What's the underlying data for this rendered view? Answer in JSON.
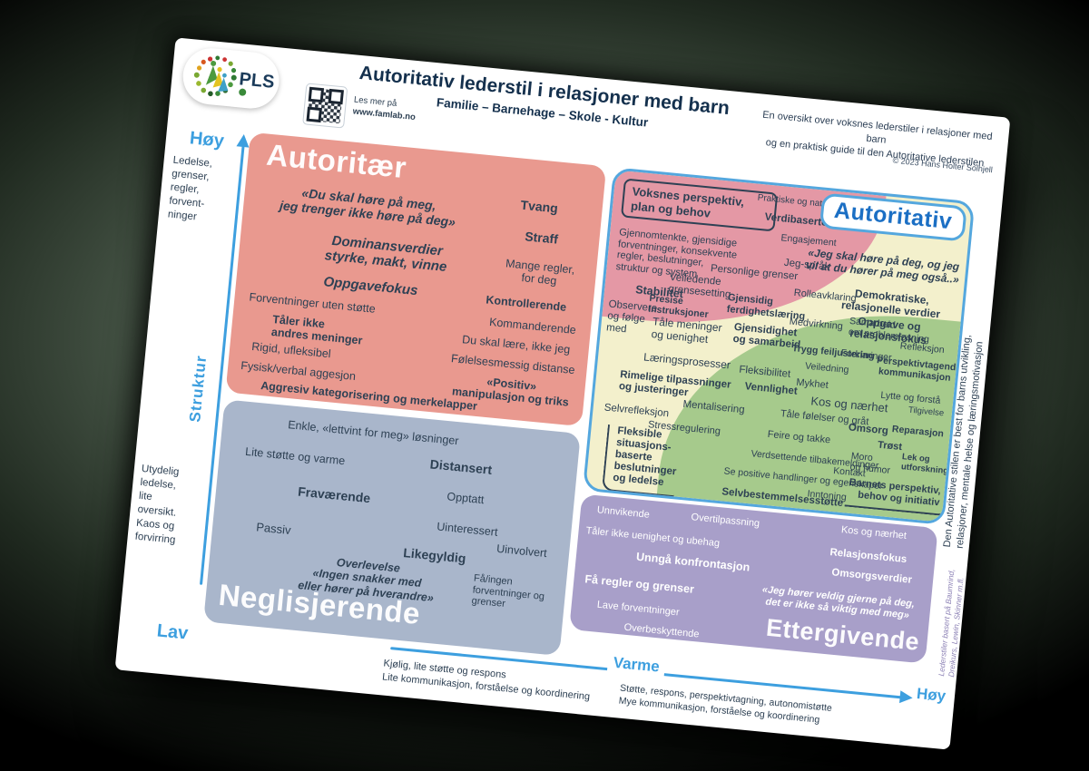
{
  "header": {
    "logo": "PLS",
    "title": "Autoritativ lederstil i relasjoner med barn",
    "subtitle": "Familie – Barnehage – Skole - Kultur",
    "read_more": "Les mer på",
    "url": "www.famlab.no",
    "intro": "En oversikt over voksnes lederstiler i relasjoner med barn\nog en praktisk guide til den Autoritative lederstilen",
    "copyright": "© 2023 Hans Holter Solhjell"
  },
  "axes": {
    "struktur": {
      "name": "Struktur",
      "high": "Høy",
      "high_desc": "Ledelse,\ngrenser,\nregler,\nforvent-\nninger",
      "low": "Lav",
      "low_desc": "Utydelig\nledelse,\nlite\noversikt.\nKaos og\nforvirring"
    },
    "varme": {
      "name": "Varme",
      "high": "Høy",
      "high_desc": "Støtte, respons, perspektivtagning, autonomistøtte\nMye kommunikasjon, forståelse og koordinering",
      "low_desc": "Kjølig, lite støtte og respons\nLite kommunikasjon, forståelse og koordinering"
    }
  },
  "autoritaer": {
    "title": "Autoritær",
    "items": [
      {
        "t": "«Du skal høre på meg,\njeg trenger ikke høre på deg»",
        "s": "bi"
      },
      {
        "t": "Tvang",
        "s": "b"
      },
      {
        "t": "Straff",
        "s": "b"
      },
      {
        "t": "Dominansverdier\nstyrke, makt, vinne",
        "s": "bi"
      },
      {
        "t": "Mange regler,\nfor deg",
        "s": ""
      },
      {
        "t": "Oppgavefokus",
        "s": "bi"
      },
      {
        "t": "Kontrollerende",
        "s": "b"
      },
      {
        "t": "Forventninger uten støtte",
        "s": ""
      },
      {
        "t": "Kommanderende",
        "s": ""
      },
      {
        "t": "Tåler ikke\nandres meninger",
        "s": "b"
      },
      {
        "t": "Du skal lære, ikke jeg",
        "s": ""
      },
      {
        "t": "Rigid, ufleksibel",
        "s": ""
      },
      {
        "t": "Følelsesmessig distanse",
        "s": ""
      },
      {
        "t": "Fysisk/verbal aggesjon",
        "s": ""
      },
      {
        "t": "«Positiv»\nmanipulasjon og triks",
        "s": "b"
      },
      {
        "t": "Aggresiv kategorisering og merkelapper",
        "s": "b"
      }
    ]
  },
  "autoritativ": {
    "title": "Autoritativ",
    "voksnes_box": "Voksnes perspektiv,\nplan og behov",
    "fleksible_box": "Fleksible\nsituasjons-\nbaserte\nbeslutninger\nog ledelse",
    "barnets_box": "Barnets perspektiv,\nbehov og initiativ",
    "pink_items": [
      {
        "t": "Gjennomtenkte, gjensidige\nforventninger, konsekvente\nregler, beslutninger,\nstruktur og system",
        "s": ""
      },
      {
        "t": "Stabilitet",
        "s": "b"
      },
      {
        "t": "Observere\nog følge\nmed",
        "s": ""
      },
      {
        "t": "Praktiske og naturlige konsekvenser",
        "s": ""
      },
      {
        "t": "Verdibaserte vurderinger",
        "s": "b"
      },
      {
        "t": "Engasjement",
        "s": ""
      }
    ],
    "yellow_items": [
      {
        "t": "«Jeg skal høre på deg, og jeg\nvil at du hører på meg også..»",
        "s": "bi"
      },
      {
        "t": "Demokratiske,\nrelasjonelle verdier",
        "s": "b"
      },
      {
        "t": "Oppgave og\nrelasjonsfokus",
        "s": "b"
      },
      {
        "t": "Jeg-språk",
        "s": ""
      },
      {
        "t": "Personlige grenser",
        "s": ""
      },
      {
        "t": "Veiledende\ngrensesetting",
        "s": ""
      },
      {
        "t": "Rolleavklaring",
        "s": ""
      },
      {
        "t": "Gjensidig\nferdighetslæring",
        "s": "b"
      },
      {
        "t": "Presise\nInstruksjoner",
        "s": "b"
      },
      {
        "t": "Medvirkning",
        "s": ""
      },
      {
        "t": "Samarbeid\nom problemløsning",
        "s": ""
      },
      {
        "t": "Tåle meninger\nog uenighet",
        "s": ""
      },
      {
        "t": "Gjensidighet\nog samarbeid",
        "s": "b"
      },
      {
        "t": "Trygg feiljustering",
        "s": "b"
      },
      {
        "t": "Læringsprosesser",
        "s": ""
      },
      {
        "t": "Fleksibilitet",
        "s": ""
      },
      {
        "t": "Rimelige tilpassninger\nog justeringer",
        "s": "b"
      },
      {
        "t": "Mentalisering",
        "s": ""
      },
      {
        "t": "Selvrefleksjon",
        "s": ""
      },
      {
        "t": "Stressregulering",
        "s": ""
      }
    ],
    "green_items": [
      {
        "t": "Refleksjon",
        "s": ""
      },
      {
        "t": "Forklaringer",
        "s": ""
      },
      {
        "t": "Veiledning",
        "s": ""
      },
      {
        "t": "Perspektivtagende\nkommunikasjon",
        "s": "b"
      },
      {
        "t": "Mykhet",
        "s": ""
      },
      {
        "t": "Kos og nærhet",
        "s": ""
      },
      {
        "t": "Lytte og forstå",
        "s": ""
      },
      {
        "t": "Vennlighet",
        "s": "b"
      },
      {
        "t": "Tåle følelser og gråt",
        "s": ""
      },
      {
        "t": "Tilgivelse",
        "s": ""
      },
      {
        "t": "Reparasjon",
        "s": "b"
      },
      {
        "t": "Omsorg",
        "s": "b"
      },
      {
        "t": "Feire og takke",
        "s": ""
      },
      {
        "t": "Trøst",
        "s": "b"
      },
      {
        "t": "Moro\nog humor",
        "s": ""
      },
      {
        "t": "Lek og\nutforskning",
        "s": "b"
      },
      {
        "t": "Verdsettende tilbakemeldinger",
        "s": ""
      },
      {
        "t": "Kontakt",
        "s": ""
      },
      {
        "t": "Se positive handlinger og egenskaper",
        "s": ""
      },
      {
        "t": "Inntoning",
        "s": ""
      },
      {
        "t": "Selvbestemmelsesstøtte",
        "s": "b"
      }
    ]
  },
  "neglisjerende": {
    "title": "Neglisjerende",
    "items": [
      {
        "t": "Enkle, «lettvint for meg» løsninger",
        "s": ""
      },
      {
        "t": "Lite støtte og varme",
        "s": ""
      },
      {
        "t": "Distansert",
        "s": "b"
      },
      {
        "t": "Opptatt",
        "s": ""
      },
      {
        "t": "Fraværende",
        "s": "b"
      },
      {
        "t": "Uinteressert",
        "s": ""
      },
      {
        "t": "Passiv",
        "s": ""
      },
      {
        "t": "Likegyldig",
        "s": "b"
      },
      {
        "t": "Uinvolvert",
        "s": ""
      },
      {
        "t": "Overlevelse\n«Ingen snakker med\neller hører på hverandre»",
        "s": "bi"
      },
      {
        "t": "Få/ingen\nforventninger og\ngrenser",
        "s": ""
      }
    ]
  },
  "ettergivende": {
    "title": "Ettergivende",
    "items": [
      {
        "t": "Unnvikende",
        "s": ""
      },
      {
        "t": "Overtilpassning",
        "s": ""
      },
      {
        "t": "Kos og nærhet",
        "s": ""
      },
      {
        "t": "Tåler ikke uenighet og ubehag",
        "s": ""
      },
      {
        "t": "Relasjonsfokus",
        "s": "b"
      },
      {
        "t": "Unngå konfrontasjon",
        "s": "b"
      },
      {
        "t": "Omsorgsverdier",
        "s": "b"
      },
      {
        "t": "Få regler og grenser",
        "s": "b"
      },
      {
        "t": "«Jeg hører veldig gjerne på deg,\ndet er ikke så viktig med meg»",
        "s": "bi"
      },
      {
        "t": "Lave forventninger",
        "s": ""
      },
      {
        "t": "Overbeskyttende",
        "s": ""
      }
    ]
  },
  "side_notes": {
    "best": "Den Autoritative stilen er best for barns utvikling,\nrelasjoner, mentale helse og læringsmotivasjon",
    "credits": "Lederstiler basert på Baumrind,\nDreikurs, Lewin, Skinner m.fl."
  }
}
